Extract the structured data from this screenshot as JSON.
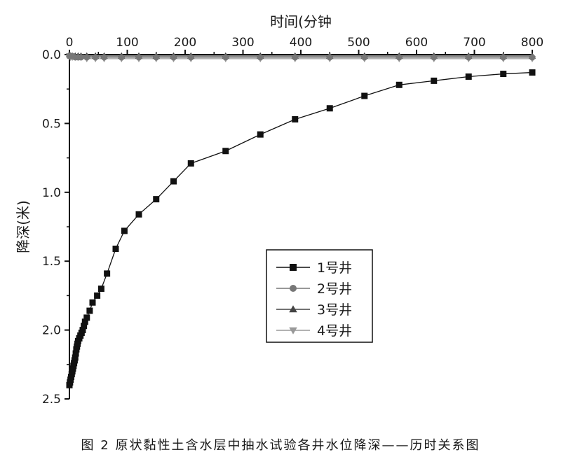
{
  "caption": "图 2   原状黏性土含水层中抽水试验各井水位降深——历时关系图",
  "chart_data": {
    "type": "line",
    "xlabel": "时间(分钟",
    "ylabel": "降深(米)",
    "xlim": [
      0,
      800
    ],
    "ylim": [
      0,
      2.5
    ],
    "y_inverted": true,
    "x_axis_position": "top",
    "x_ticks": [
      0,
      100,
      200,
      300,
      400,
      500,
      600,
      700,
      800
    ],
    "y_ticks": [
      "0.0",
      "0.5",
      "1.0",
      "1.5",
      "2.0",
      "2.5"
    ],
    "legend_position": "center-right",
    "series": [
      {
        "name": "1号井",
        "marker": "square",
        "color": "#111111",
        "x": [
          0,
          1,
          2,
          3,
          4,
          5,
          6,
          7,
          8,
          9,
          10,
          11,
          12,
          13,
          14,
          15,
          17,
          19,
          21,
          23,
          25,
          27,
          30,
          35,
          40,
          48,
          55,
          65,
          80,
          95,
          120,
          150,
          180,
          210,
          270,
          330,
          390,
          450,
          510,
          570,
          630,
          690,
          750,
          800
        ],
        "y": [
          2.4,
          2.38,
          2.36,
          2.34,
          2.32,
          2.3,
          2.28,
          2.26,
          2.24,
          2.22,
          2.2,
          2.17,
          2.14,
          2.12,
          2.1,
          2.08,
          2.06,
          2.04,
          2.02,
          2.0,
          1.97,
          1.94,
          1.91,
          1.86,
          1.8,
          1.75,
          1.7,
          1.59,
          1.41,
          1.28,
          1.16,
          1.05,
          0.92,
          0.79,
          0.7,
          0.58,
          0.47,
          0.39,
          0.3,
          0.22,
          0.19,
          0.16,
          0.14,
          0.13
        ]
      },
      {
        "name": "2号井",
        "marker": "circle",
        "color": "#777777",
        "x": [
          0,
          2,
          5,
          10,
          15,
          20,
          30,
          45,
          60,
          90,
          120,
          150,
          180,
          210,
          270,
          330,
          390,
          450,
          510,
          570,
          630,
          690,
          750,
          800
        ],
        "y": [
          0.01,
          0.01,
          0.01,
          0.02,
          0.02,
          0.02,
          0.02,
          0.02,
          0.02,
          0.02,
          0.02,
          0.02,
          0.02,
          0.02,
          0.02,
          0.02,
          0.02,
          0.02,
          0.02,
          0.02,
          0.02,
          0.02,
          0.02,
          0.02
        ]
      },
      {
        "name": "3号井",
        "marker": "triangle-up",
        "color": "#444444",
        "x": [
          0,
          2,
          5,
          10,
          15,
          20,
          30,
          45,
          60,
          90,
          120,
          150,
          180,
          210,
          270,
          330,
          390,
          450,
          510,
          570,
          630,
          690,
          750,
          800
        ],
        "y": [
          0.0,
          0.01,
          0.01,
          0.01,
          0.01,
          0.01,
          0.01,
          0.01,
          0.01,
          0.01,
          0.01,
          0.01,
          0.01,
          0.01,
          0.01,
          0.01,
          0.01,
          0.01,
          0.01,
          0.01,
          0.01,
          0.01,
          0.01,
          0.01
        ]
      },
      {
        "name": "4号井",
        "marker": "triangle-down",
        "color": "#999999",
        "x": [
          0,
          2,
          5,
          10,
          15,
          20,
          30,
          45,
          60,
          90,
          120,
          150,
          180,
          210,
          270,
          330,
          390,
          450,
          510,
          570,
          630,
          690,
          750,
          800
        ],
        "y": [
          0.01,
          0.02,
          0.02,
          0.02,
          0.02,
          0.02,
          0.03,
          0.03,
          0.03,
          0.03,
          0.03,
          0.03,
          0.03,
          0.03,
          0.03,
          0.03,
          0.03,
          0.03,
          0.03,
          0.03,
          0.03,
          0.03,
          0.03,
          0.03
        ]
      }
    ]
  }
}
